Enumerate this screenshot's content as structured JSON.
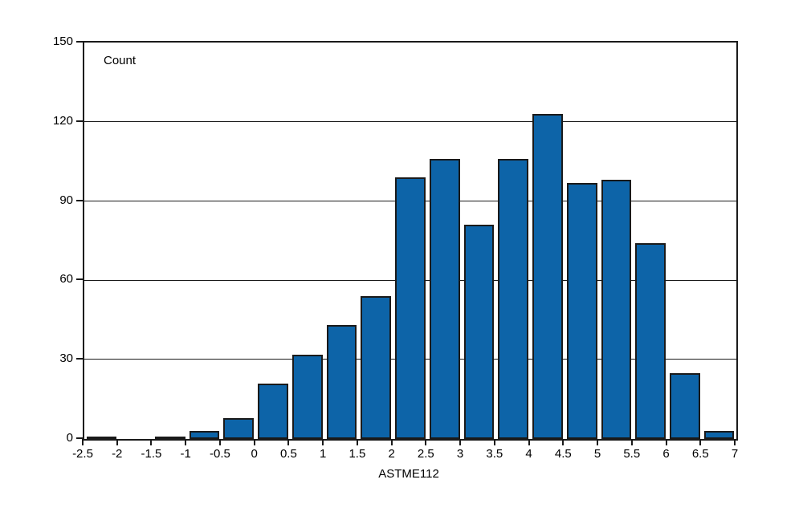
{
  "chart_data": {
    "type": "bar",
    "subtype": "histogram",
    "inner_label": "Count",
    "xlabel": "ASTME112",
    "ylabel": "Count",
    "bin_edges": [
      -2.5,
      -2,
      -1.5,
      -1,
      -0.5,
      0,
      0.5,
      1,
      1.5,
      2,
      2.5,
      3,
      3.5,
      4,
      4.5,
      5,
      5.5,
      6,
      6.5,
      7
    ],
    "values": [
      1,
      0,
      1,
      3,
      8,
      21,
      32,
      43,
      54,
      99,
      106,
      81,
      106,
      123,
      97,
      98,
      74,
      25,
      3
    ],
    "x_tick_labels": [
      "-2.5",
      "-2",
      "-1.5",
      "-1",
      "-0.5",
      "0",
      "0.5",
      "1",
      "1.5",
      "2",
      "2.5",
      "3",
      "3.5",
      "4",
      "4.5",
      "5",
      "5.5",
      "6",
      "6.5",
      "7"
    ],
    "y_ticks": [
      0,
      30,
      60,
      90,
      120,
      150
    ],
    "y_tick_labels": [
      "0",
      "30",
      "60",
      "90",
      "120",
      "150"
    ],
    "xlim": [
      -2.5,
      7
    ],
    "ylim": [
      0,
      150
    ],
    "grid": "horizontal",
    "legend": "none",
    "colors": {
      "bar_fill": "#0d64a8",
      "bar_border": "#1a1a1a",
      "axis": "#1a1a1a",
      "background": "#ffffff",
      "text": "#000000"
    }
  }
}
